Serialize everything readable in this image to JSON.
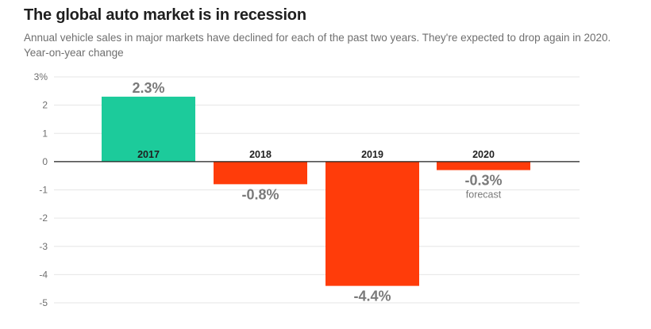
{
  "header": {
    "title": "The global auto market is in recession",
    "subtitle": "Annual vehicle sales in major markets have declined for each of the past two years. They're expected to drop again in 2020.",
    "subtitle2": "Year-on-year change"
  },
  "chart_data": {
    "type": "bar",
    "title": "The global auto market is in recession",
    "ylabel": "Year-on-year change",
    "categories": [
      "2017",
      "2018",
      "2019",
      "2020"
    ],
    "values": [
      2.3,
      -0.8,
      -4.4,
      -0.3
    ],
    "value_labels": [
      "2.3%",
      "-0.8%",
      "-4.4%",
      "-0.3%"
    ],
    "notes": [
      "",
      "",
      "",
      "forecast"
    ],
    "ylim": [
      -5,
      3
    ],
    "yticks": [
      3,
      2,
      1,
      0,
      -1,
      -2,
      -3,
      -4,
      -5
    ],
    "ytick_labels": [
      "3%",
      "2",
      "1",
      "0",
      "-1",
      "-2",
      "-3",
      "-4",
      "-5"
    ],
    "grid": true,
    "colors": {
      "positive": "#1ccb9b",
      "negative": "#ff3c0a",
      "axis": "#1f1f1f",
      "grid": "#e6e6e6"
    }
  }
}
